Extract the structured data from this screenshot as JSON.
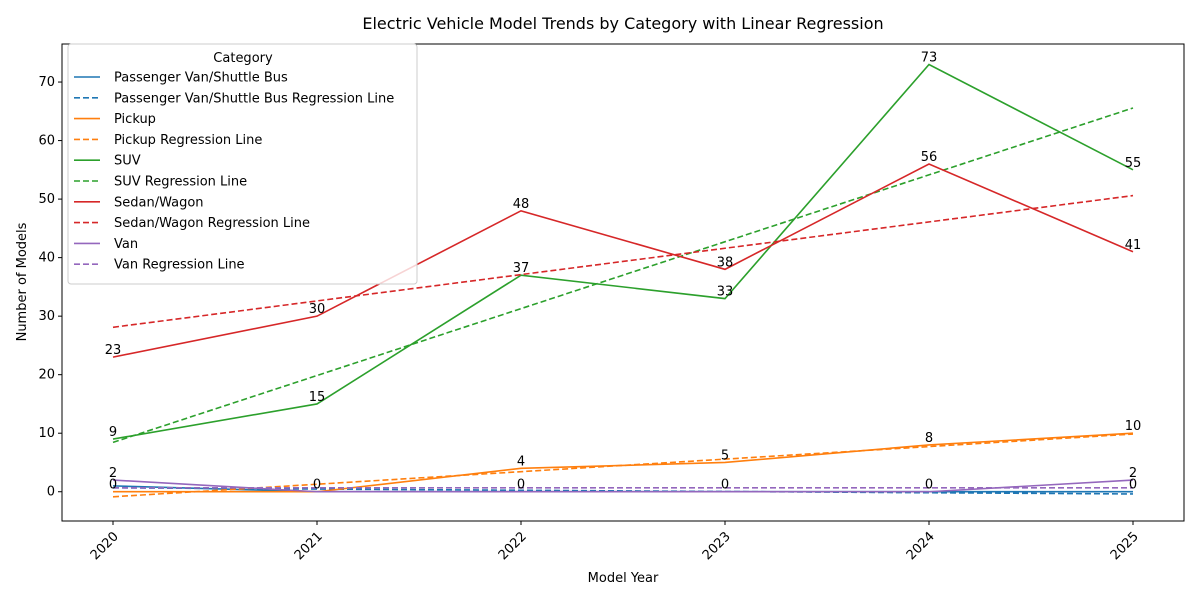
{
  "chart_data": {
    "type": "line",
    "title": "Electric Vehicle Model Trends by Category with Linear Regression",
    "xlabel": "Model Year",
    "ylabel": "Number of Models",
    "x": [
      2020,
      2021,
      2022,
      2023,
      2024,
      2025
    ],
    "xlim": [
      2019.75,
      2025.25
    ],
    "ylim": [
      -5,
      76.5
    ],
    "yticks": [
      0,
      10,
      20,
      30,
      40,
      50,
      60,
      70
    ],
    "grid": false,
    "legend": {
      "title": "Category",
      "placement": "top-left"
    },
    "series": [
      {
        "name": "Passenger Van/Shuttle Bus",
        "color": "#1f77b4",
        "values": [
          1,
          0,
          0,
          0,
          0,
          0
        ],
        "regression_name": "Passenger Van/Shuttle Bus Regression Line",
        "regression": [
          0.67,
          -0.38
        ]
      },
      {
        "name": "Pickup",
        "color": "#ff7f0e",
        "values": [
          0,
          0,
          4,
          5,
          8,
          10
        ],
        "regression_name": "Pickup Regression Line",
        "regression": [
          -0.86,
          9.86
        ]
      },
      {
        "name": "SUV",
        "color": "#2ca02c",
        "values": [
          9,
          15,
          37,
          33,
          73,
          55
        ],
        "regression_name": "SUV Regression Line",
        "regression": [
          8.43,
          65.57
        ]
      },
      {
        "name": "Sedan/Wagon",
        "color": "#d62728",
        "values": [
          23,
          30,
          48,
          38,
          56,
          41
        ],
        "regression_name": "Sedan/Wagon Regression Line",
        "regression": [
          28.1,
          50.6
        ]
      },
      {
        "name": "Van",
        "color": "#9467bd",
        "values": [
          2,
          0,
          0,
          0,
          0,
          2
        ],
        "regression_name": "Van Regression Line",
        "regression": [
          0.67,
          0.67
        ]
      }
    ],
    "data_labels": [
      {
        "year": 2020,
        "y": 0,
        "text": "0"
      },
      {
        "year": 2020,
        "y": 2,
        "text": "2"
      },
      {
        "year": 2020,
        "y": 9,
        "text": "9"
      },
      {
        "year": 2020,
        "y": 23,
        "text": "23"
      },
      {
        "year": 2021,
        "y": 0,
        "text": "0"
      },
      {
        "year": 2021,
        "y": 15,
        "text": "15"
      },
      {
        "year": 2021,
        "y": 30,
        "text": "30"
      },
      {
        "year": 2022,
        "y": 0,
        "text": "0"
      },
      {
        "year": 2022,
        "y": 4,
        "text": "4"
      },
      {
        "year": 2022,
        "y": 37,
        "text": "37"
      },
      {
        "year": 2022,
        "y": 48,
        "text": "48"
      },
      {
        "year": 2023,
        "y": 0,
        "text": "0"
      },
      {
        "year": 2023,
        "y": 5,
        "text": "5"
      },
      {
        "year": 2023,
        "y": 33,
        "text": "33"
      },
      {
        "year": 2023,
        "y": 38,
        "text": "38"
      },
      {
        "year": 2024,
        "y": 0,
        "text": "0"
      },
      {
        "year": 2024,
        "y": 8,
        "text": "8"
      },
      {
        "year": 2024,
        "y": 56,
        "text": "56"
      },
      {
        "year": 2024,
        "y": 73,
        "text": "73"
      },
      {
        "year": 2025,
        "y": 0,
        "text": "0"
      },
      {
        "year": 2025,
        "y": 2,
        "text": "2"
      },
      {
        "year": 2025,
        "y": 10,
        "text": "10"
      },
      {
        "year": 2025,
        "y": 41,
        "text": "41"
      },
      {
        "year": 2025,
        "y": 55,
        "text": "55"
      }
    ]
  }
}
